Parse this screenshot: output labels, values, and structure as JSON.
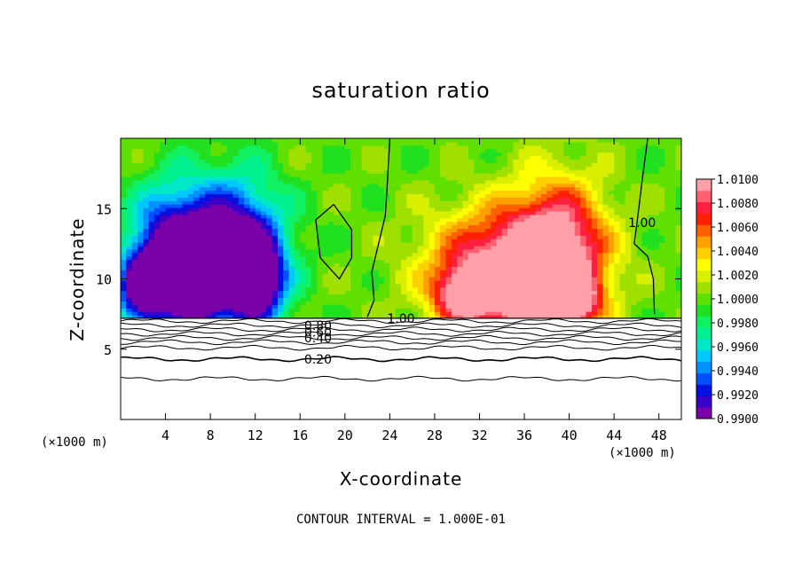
{
  "chart_data": {
    "type": "heatmap",
    "title": "saturation ratio",
    "xlabel": "X-coordinate",
    "ylabel": "Z-coordinate",
    "x_unit_left": "(×1000 m)",
    "x_unit_right": "(×1000 m)",
    "xlim": [
      0,
      50
    ],
    "ylim": [
      0,
      20
    ],
    "x_ticks": [
      4,
      8,
      12,
      16,
      20,
      24,
      28,
      32,
      36,
      40,
      44,
      48
    ],
    "x_tick_labels": [
      "4",
      "8",
      "12",
      "16",
      "20",
      "24",
      "28",
      "32",
      "36",
      "40",
      "44",
      "48"
    ],
    "y_ticks": [
      5,
      10,
      15
    ],
    "y_tick_labels": [
      "5",
      "10",
      "15"
    ],
    "colorbar": {
      "min": 0.99,
      "max": 1.01,
      "step": 0.001,
      "labels": [
        "1.0100",
        "1.0080",
        "1.0060",
        "1.0040",
        "1.0020",
        "1.0000",
        "0.9980",
        "0.9960",
        "0.9940",
        "0.9920",
        "0.9900"
      ],
      "colors": [
        "#7a00a8",
        "#3a00c8",
        "#0010e0",
        "#0050ff",
        "#0090ff",
        "#00c8ff",
        "#00e8c8",
        "#00f090",
        "#10f060",
        "#20e020",
        "#60e000",
        "#a0e000",
        "#d8f000",
        "#ffff00",
        "#ffd000",
        "#ffa000",
        "#ff6000",
        "#ff2000",
        "#ff2040",
        "#ff6070",
        "#ffa0a8"
      ]
    },
    "contour_interval_note": "CONTOUR INTERVAL = 1.000E-01",
    "contour_labels": [
      {
        "text": "1.00",
        "x": 25,
        "z": 7.2
      },
      {
        "text": "1.00",
        "x": 46.5,
        "z": 14
      },
      {
        "text": "0.80",
        "x": 17.6,
        "z": 6.7
      },
      {
        "text": "0.60",
        "x": 17.6,
        "z": 6.2
      },
      {
        "text": "0.40",
        "x": 17.6,
        "z": 5.8
      },
      {
        "text": "0.20",
        "x": 17.6,
        "z": 4.3
      }
    ],
    "cloud_base_z": 7.2,
    "contours_below_base": [
      {
        "level": 0.9,
        "z": 7.0
      },
      {
        "level": 0.8,
        "z": 6.7
      },
      {
        "level": 0.7,
        "z": 6.4
      },
      {
        "level": 0.6,
        "z": 6.1
      },
      {
        "level": 0.5,
        "z": 5.8
      },
      {
        "level": 0.4,
        "z": 5.5
      },
      {
        "level": 0.3,
        "z": 5.1
      },
      {
        "level": 0.2,
        "z": 4.3
      },
      {
        "level": 0.1,
        "z": 2.9
      }
    ],
    "features": [
      {
        "kind": "subsaturated",
        "x_range": [
          0,
          16
        ],
        "z_range": [
          7.2,
          12
        ],
        "min": 0.99
      },
      {
        "kind": "supersaturated",
        "x_range": [
          27,
          44
        ],
        "z_range": [
          7.2,
          13
        ],
        "max": 1.01
      },
      {
        "kind": "saturated",
        "x_range": [
          16,
          27
        ],
        "z_range": [
          7.2,
          20
        ],
        "value": 1.0
      }
    ]
  }
}
